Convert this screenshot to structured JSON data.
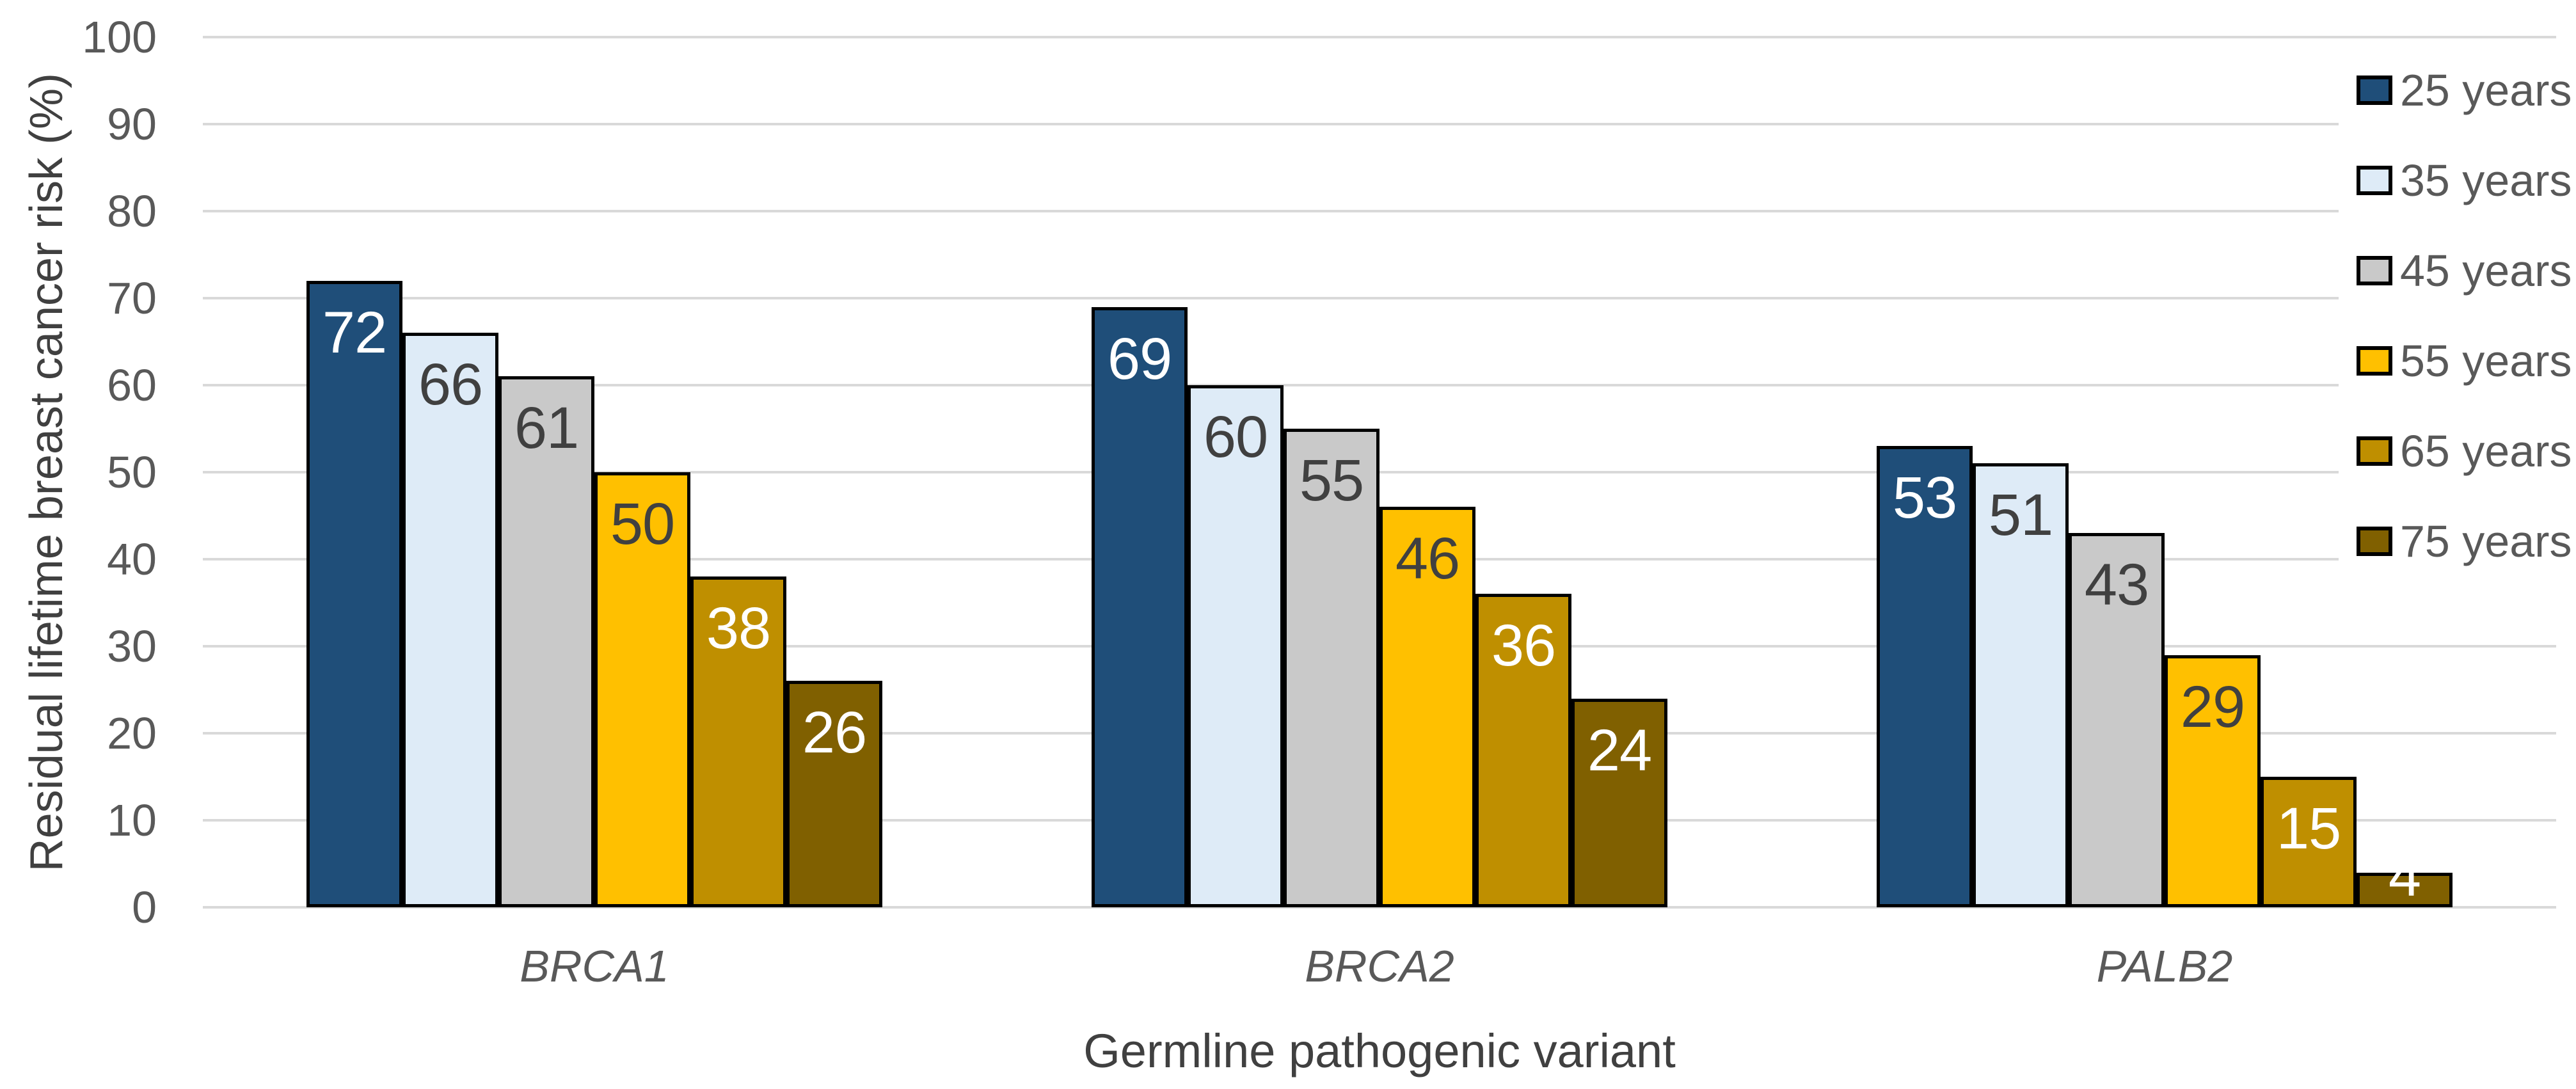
{
  "chart_data": {
    "type": "bar",
    "title": "",
    "xlabel": "Germline pathogenic variant",
    "ylabel": "Residual lifetime breast cancer risk (%)",
    "categories": [
      "BRCA1",
      "BRCA2",
      "PALB2"
    ],
    "series": [
      {
        "name": "25 years",
        "color": "#1F4E79",
        "label_color": "#FFFFFF",
        "values": [
          72,
          69,
          53
        ]
      },
      {
        "name": "35 years",
        "color": "#DEEBF7",
        "label_color": "#404040",
        "values": [
          66,
          60,
          51
        ]
      },
      {
        "name": "45 years",
        "color": "#C9C9C9",
        "label_color": "#404040",
        "values": [
          61,
          55,
          43
        ]
      },
      {
        "name": "55 years",
        "color": "#FFC000",
        "label_color": "#404040",
        "values": [
          50,
          46,
          29
        ]
      },
      {
        "name": "65 years",
        "color": "#BF8F00",
        "label_color": "#FFFFFF",
        "values": [
          38,
          36,
          15
        ]
      },
      {
        "name": "75 years",
        "color": "#806000",
        "label_color": "#FFFFFF",
        "values": [
          26,
          24,
          4
        ]
      }
    ],
    "ylim": [
      0,
      100
    ],
    "yticks": [
      0,
      10,
      20,
      30,
      40,
      50,
      60,
      70,
      80,
      90,
      100
    ],
    "grid": "horizontal",
    "grid_color": "#D9D9D9",
    "bar_border_color": "#000000",
    "axis_text_color": "#595959",
    "legend_position": "right",
    "background": "#FFFFFF"
  }
}
